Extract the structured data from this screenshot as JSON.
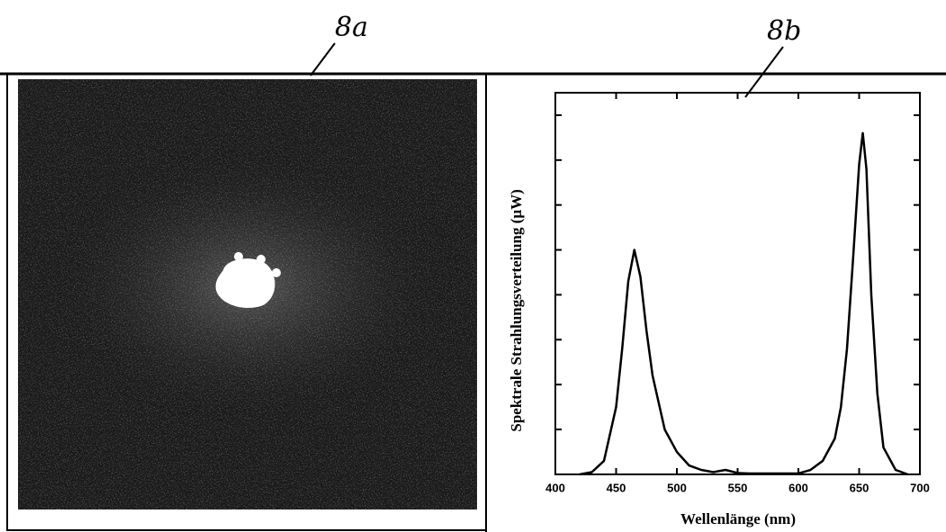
{
  "figure_labels": [
    "8a",
    "8b"
  ],
  "chart_data": {
    "type": "line",
    "x_label": "Wellenlänge (nm)",
    "y_label": "Spektrale Strahlungsverteilung (µW)",
    "x": [
      420,
      430,
      440,
      450,
      455,
      460,
      465,
      470,
      475,
      480,
      490,
      500,
      510,
      520,
      530,
      540,
      550,
      560,
      580,
      600,
      610,
      620,
      630,
      635,
      640,
      645,
      650,
      653,
      656,
      660,
      665,
      670,
      680,
      690
    ],
    "series": [
      {
        "color": "#000000",
        "values": [
          0,
          0.05,
          0.3,
          1.5,
          2.8,
          4.3,
          5.0,
          4.4,
          3.2,
          2.2,
          1.0,
          0.5,
          0.2,
          0.1,
          0.05,
          0.1,
          0.03,
          0.02,
          0.02,
          0.02,
          0.1,
          0.3,
          0.8,
          1.5,
          2.8,
          4.8,
          6.9,
          7.6,
          6.8,
          4.0,
          1.8,
          0.6,
          0.1,
          0
        ]
      }
    ],
    "xlim": [
      400,
      700
    ],
    "xticks": [
      400,
      450,
      500,
      550,
      600,
      650,
      700
    ],
    "ylim": [
      0,
      8.5
    ],
    "yticks": [
      1,
      2,
      3,
      4,
      5,
      6,
      7,
      8
    ]
  }
}
